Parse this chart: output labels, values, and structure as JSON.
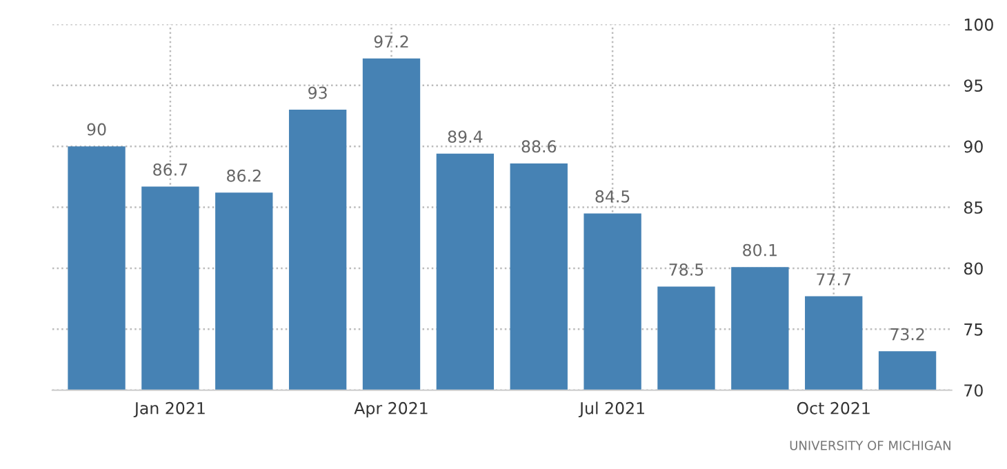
{
  "chart_data": {
    "type": "bar",
    "categories": [
      null,
      "Jan 2021",
      null,
      null,
      "Apr 2021",
      null,
      null,
      "Jul 2021",
      null,
      null,
      "Oct 2021",
      null
    ],
    "values": [
      90,
      86.7,
      86.2,
      93,
      97.2,
      89.4,
      88.6,
      84.5,
      78.5,
      80.1,
      77.7,
      73.2
    ],
    "color": "#4682b4",
    "ylim": [
      70,
      100
    ],
    "yticks": [
      70,
      75,
      80,
      85,
      90,
      95,
      100
    ],
    "grid": true,
    "data_labels": true,
    "annotations": [
      "UNIVERSITY OF MICHIGAN"
    ]
  }
}
